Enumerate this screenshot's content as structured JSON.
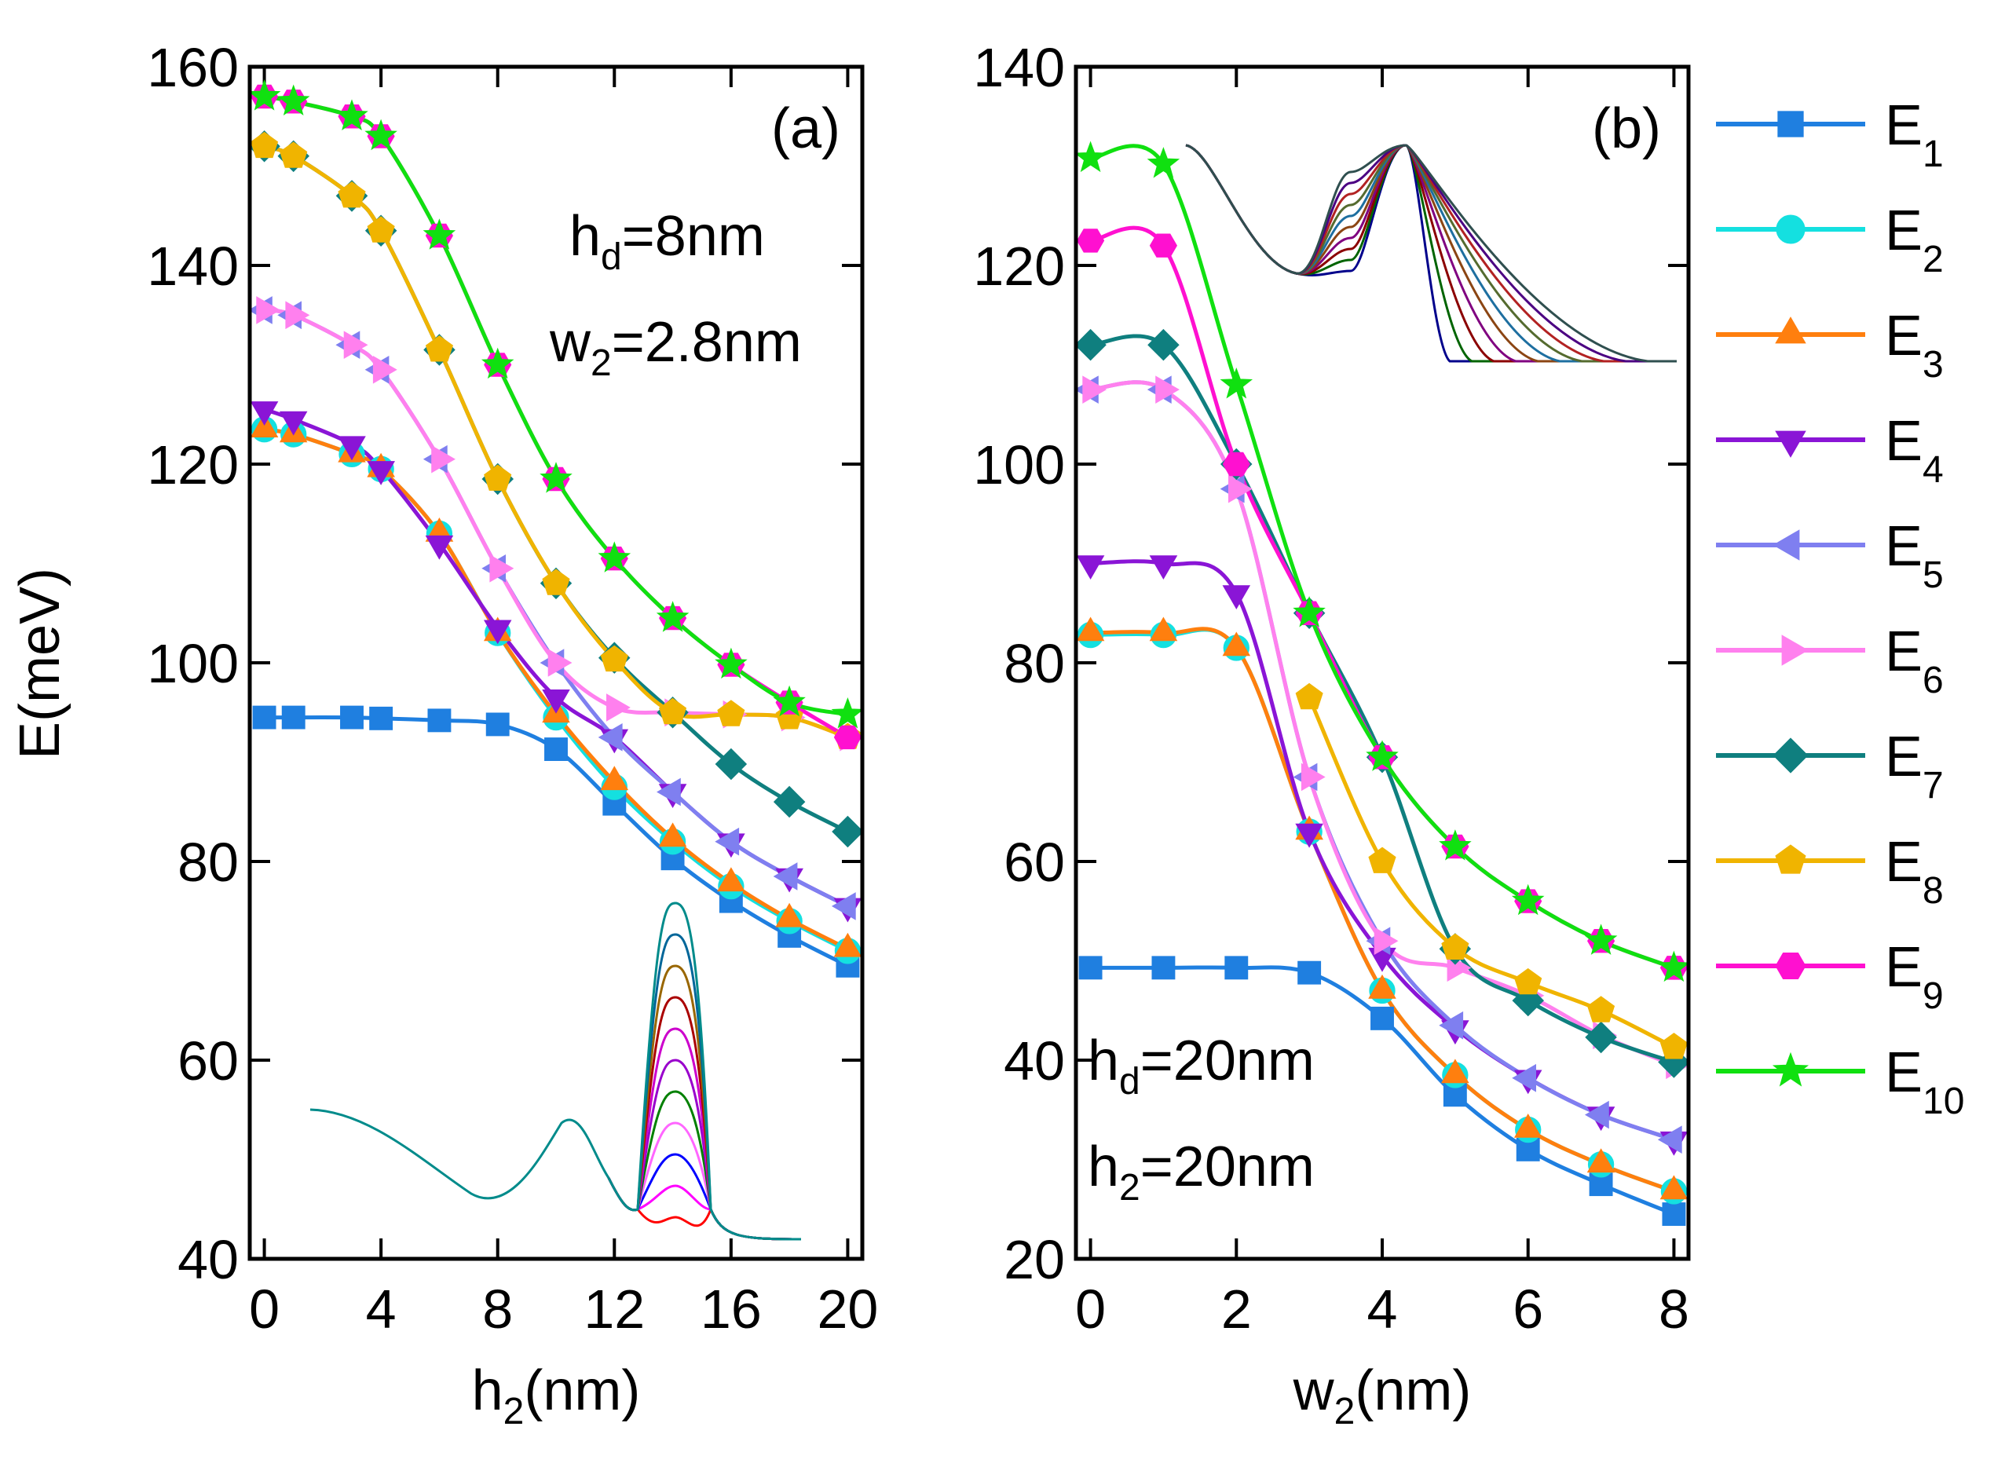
{
  "chart_data": [
    {
      "type": "line",
      "panel_label": "(a)",
      "title": "",
      "xlabel": "h",
      "xlabel_sub": "2",
      "xlabel_unit": "(nm)",
      "ylabel": "E(meV)",
      "xlim": [
        -0.5,
        20.5
      ],
      "ylim": [
        40,
        160
      ],
      "xticks": [
        0,
        4,
        8,
        12,
        16,
        20
      ],
      "yticks": [
        40,
        60,
        80,
        100,
        120,
        140,
        160
      ],
      "annotations": [
        {
          "main": "h",
          "sub": "d",
          "rest": "=8nm"
        },
        {
          "main": "w",
          "sub": "2",
          "rest": "=2.8nm"
        }
      ],
      "x": [
        0,
        1,
        3,
        4,
        6,
        8,
        10,
        12,
        14,
        16,
        18,
        20
      ],
      "series": [
        {
          "name": "E1",
          "values": [
            94.5,
            94.5,
            94.5,
            94.4,
            94.2,
            93.8,
            91.3,
            85.8,
            80.3,
            76.0,
            72.5,
            69.5
          ]
        },
        {
          "name": "E2",
          "values": [
            123.5,
            123.0,
            121.0,
            119.5,
            113.0,
            103.0,
            94.5,
            87.5,
            82.0,
            77.5,
            74.0,
            71.0
          ]
        },
        {
          "name": "E3",
          "values": [
            123.5,
            123.0,
            121.0,
            119.5,
            113.0,
            103.0,
            94.8,
            88.0,
            82.3,
            77.8,
            74.2,
            71.2
          ]
        },
        {
          "name": "E4",
          "values": [
            125.5,
            124.5,
            122.0,
            119.5,
            112.0,
            103.5,
            96.5,
            92.5,
            87.0,
            82.0,
            78.5,
            75.5
          ]
        },
        {
          "name": "E5",
          "values": [
            135.5,
            135.0,
            132.0,
            129.5,
            120.5,
            109.5,
            100.0,
            92.5,
            87.0,
            82.0,
            78.5,
            75.5
          ]
        },
        {
          "name": "E6",
          "values": [
            135.5,
            135.0,
            132.0,
            129.5,
            120.5,
            109.5,
            100.0,
            95.5,
            95.0,
            94.8,
            94.5,
            92.5
          ]
        },
        {
          "name": "E7",
          "values": [
            152.0,
            151.0,
            147.0,
            143.5,
            131.5,
            118.5,
            108.0,
            100.5,
            95.0,
            89.8,
            86.0,
            83.0
          ]
        },
        {
          "name": "E8",
          "values": [
            152.0,
            151.0,
            147.0,
            143.5,
            131.5,
            118.5,
            108.0,
            100.3,
            95.0,
            94.8,
            94.5,
            92.5
          ]
        },
        {
          "name": "E9",
          "values": [
            157.0,
            156.5,
            155.0,
            153.0,
            143.0,
            130.0,
            118.5,
            110.5,
            104.5,
            99.8,
            96.0,
            92.5
          ]
        },
        {
          "name": "E10",
          "values": [
            157.0,
            156.5,
            155.0,
            153.0,
            143.0,
            130.0,
            118.5,
            110.5,
            104.5,
            99.8,
            96.0,
            94.8
          ]
        }
      ]
    },
    {
      "type": "line",
      "panel_label": "(b)",
      "title": "",
      "xlabel": "w",
      "xlabel_sub": "2",
      "xlabel_unit": "(nm)",
      "ylabel": "",
      "xlim": [
        -0.2,
        8.2
      ],
      "ylim": [
        20,
        140
      ],
      "xticks": [
        0,
        2,
        4,
        6,
        8
      ],
      "yticks": [
        20,
        40,
        60,
        80,
        100,
        120,
        140
      ],
      "annotations": [
        {
          "main": "h",
          "sub": "d",
          "rest": "=20nm"
        },
        {
          "main": "h",
          "sub": "2",
          "rest": "=20nm"
        }
      ],
      "x": [
        0,
        1,
        2,
        3,
        4,
        5,
        6,
        7,
        8
      ],
      "series": [
        {
          "name": "E1",
          "values": [
            49.3,
            49.3,
            49.3,
            48.8,
            44.2,
            36.5,
            31.0,
            27.5,
            24.5
          ]
        },
        {
          "name": "E2",
          "values": [
            82.8,
            82.8,
            81.5,
            63.0,
            47.0,
            38.5,
            33.0,
            29.5,
            26.8
          ]
        },
        {
          "name": "E3",
          "values": [
            83.0,
            83.0,
            81.5,
            63.0,
            47.0,
            38.5,
            33.0,
            29.5,
            26.8
          ]
        },
        {
          "name": "E4",
          "values": [
            90.0,
            90.0,
            87.0,
            63.0,
            50.5,
            43.2,
            38.2,
            34.5,
            32.0
          ]
        },
        {
          "name": "E5",
          "values": [
            107.5,
            107.5,
            97.5,
            68.5,
            52.0,
            43.5,
            38.2,
            34.5,
            32.0
          ]
        },
        {
          "name": "E6",
          "values": [
            107.5,
            107.5,
            97.5,
            68.5,
            52.0,
            49.3,
            46.5,
            42.5,
            39.5
          ]
        },
        {
          "name": "E7",
          "values": [
            112.0,
            112.0,
            100.0,
            85.0,
            70.5,
            51.2,
            46.0,
            42.3,
            39.8
          ]
        },
        {
          "name": "E8",
          "values": [
            null,
            null,
            null,
            76.5,
            60.0,
            51.3,
            47.8,
            45.0,
            41.3
          ]
        },
        {
          "name": "E9",
          "values": [
            122.5,
            122.0,
            100.0,
            85.0,
            70.5,
            61.5,
            56.0,
            52.0,
            49.3
          ]
        },
        {
          "name": "E10",
          "values": [
            130.8,
            130.2,
            108.0,
            85.0,
            70.5,
            61.5,
            56.0,
            52.0,
            49.3
          ]
        }
      ]
    }
  ],
  "legend": {
    "placement": "right",
    "entries": [
      {
        "main": "E",
        "sub": "1",
        "color": "#1f7fe0",
        "marker": "square"
      },
      {
        "main": "E",
        "sub": "2",
        "color": "#14e0e0",
        "marker": "circle"
      },
      {
        "main": "E",
        "sub": "3",
        "color": "#ff7f0e",
        "marker": "triangle-up"
      },
      {
        "main": "E",
        "sub": "4",
        "color": "#8a15d6",
        "marker": "triangle-down"
      },
      {
        "main": "E",
        "sub": "5",
        "color": "#7f7ff0",
        "marker": "triangle-left"
      },
      {
        "main": "E",
        "sub": "6",
        "color": "#ff80ee",
        "marker": "triangle-right"
      },
      {
        "main": "E",
        "sub": "7",
        "color": "#0f7f7f",
        "marker": "diamond"
      },
      {
        "main": "E",
        "sub": "8",
        "color": "#f0b400",
        "marker": "pentagon"
      },
      {
        "main": "E",
        "sub": "9",
        "color": "#ff10d0",
        "marker": "hexagon"
      },
      {
        "main": "E",
        "sub": "10",
        "color": "#10e010",
        "marker": "star"
      }
    ]
  },
  "insets": {
    "a_curve_colors": [
      "#ff0000",
      "#ff00ff",
      "#0000ff",
      "#ff66ff",
      "#008000",
      "#9900cc",
      "#cc00cc",
      "#aa0000",
      "#996600",
      "#006699",
      "#008b8b"
    ],
    "b_curve_colors": [
      "#00008b",
      "#006400",
      "#8b0000",
      "#800080",
      "#8b4513",
      "#1e6fa0",
      "#556b2f",
      "#b22222",
      "#4b0082",
      "#2f4f4f"
    ]
  }
}
